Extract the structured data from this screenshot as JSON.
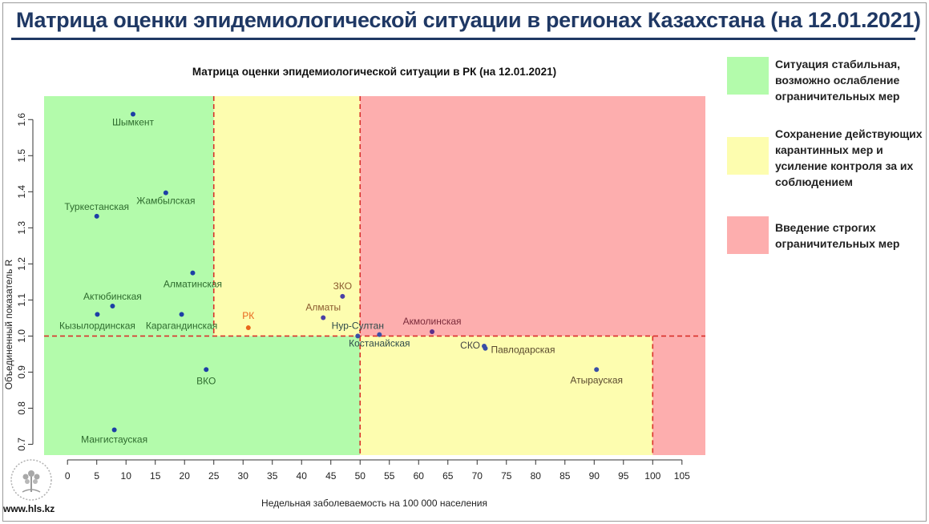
{
  "slide": {
    "title": "Матрица оценки эпидемиологической ситуации в регионах Казахстана (на 12.01.2021)",
    "url": "www.hls.kz"
  },
  "legend": [
    {
      "label": "Ситуация стабильная, возможно ослабление ограничительных мер",
      "color": "#b3fbab"
    },
    {
      "label": "Сохранение действующих карантинных мер и усиление контроля за их соблюдением",
      "color": "#fdfdaf"
    },
    {
      "label": "Введение строгих ограничительных мер",
      "color": "#fdaeae"
    }
  ],
  "chart_data": {
    "type": "scatter",
    "title": "Матрица оценки эпидемиологической ситуации в РК (на 12.01.2021)",
    "xlabel": "Недельная заболеваемость на 100 000 населения",
    "ylabel": "Объединенный показатель R",
    "xlim": [
      -4,
      109
    ],
    "ylim": [
      0.67,
      1.665
    ],
    "xticks": [
      0,
      5,
      10,
      15,
      20,
      25,
      30,
      35,
      40,
      45,
      50,
      55,
      60,
      65,
      70,
      75,
      80,
      85,
      90,
      95,
      100,
      105
    ],
    "yticks": [
      0.7,
      0.8,
      0.9,
      1.0,
      1.1,
      1.2,
      1.3,
      1.4,
      1.5,
      1.6
    ],
    "thresholds": {
      "x": [
        25,
        50,
        100
      ],
      "y": 1.0
    },
    "zone_colors": {
      "green": "#b3fbab",
      "yellow": "#fdfdaf",
      "red": "#fdaeae",
      "dashed_line": "#d9302a"
    },
    "points": [
      {
        "name": "Шымкент",
        "x": 11.2,
        "y": 1.615,
        "color": "#1d3fa6",
        "label_color": "#2e6b2e"
      },
      {
        "name": "Жамбылская",
        "x": 16.8,
        "y": 1.397,
        "color": "#1d3fa6",
        "label_color": "#2e6b2e"
      },
      {
        "name": "Туркестанская",
        "x": 5.0,
        "y": 1.332,
        "color": "#1d3fa6",
        "label_color": "#2e6b2e"
      },
      {
        "name": "Алматинская",
        "x": 21.4,
        "y": 1.175,
        "color": "#1d3fa6",
        "label_color": "#2e6b2e"
      },
      {
        "name": "Актюбинская",
        "x": 7.7,
        "y": 1.083,
        "color": "#1d3fa6",
        "label_color": "#2e6b2e"
      },
      {
        "name": "Кызылординская",
        "x": 5.1,
        "y": 1.06,
        "color": "#1d3fa6",
        "label_color": "#2e6b2e"
      },
      {
        "name": "Карагандинская",
        "x": 19.5,
        "y": 1.06,
        "color": "#1d3fa6",
        "label_color": "#2e6b2e"
      },
      {
        "name": "ВКО",
        "x": 23.7,
        "y": 0.907,
        "color": "#1d3fa6",
        "label_color": "#2e6b2e"
      },
      {
        "name": "Мангистауская",
        "x": 8.0,
        "y": 0.74,
        "color": "#1d3fa6",
        "label_color": "#2e6b2e"
      },
      {
        "name": "РК",
        "x": 30.9,
        "y": 1.023,
        "color": "#e8661c",
        "label_color": "#e8661c"
      },
      {
        "name": "ЗКО",
        "x": 47.0,
        "y": 1.11,
        "color": "#4a3fa6",
        "label_color": "#8a5a2e"
      },
      {
        "name": "Алматы",
        "x": 43.7,
        "y": 1.051,
        "color": "#4a3fa6",
        "label_color": "#8a5a2e"
      },
      {
        "name": "Нур-Султан",
        "x": 49.6,
        "y": 1.0,
        "color": "#3a4fa6",
        "label_color": "#2e4a4a"
      },
      {
        "name": "Костанайская",
        "x": 53.3,
        "y": 1.004,
        "color": "#3a4fa6",
        "label_color": "#2e4a4a"
      },
      {
        "name": "Акмолинская",
        "x": 62.3,
        "y": 1.012,
        "color": "#5a2f8a",
        "label_color": "#7a2a3a"
      },
      {
        "name": "СКО",
        "x": 71.2,
        "y": 0.972,
        "color": "#3a4fa6",
        "label_color": "#444444"
      },
      {
        "name": "Павлодарская",
        "x": 71.4,
        "y": 0.966,
        "color": "#3a4fa6",
        "label_color": "#5a4a2e"
      },
      {
        "name": "Атырауская",
        "x": 90.4,
        "y": 0.907,
        "color": "#3a4fa6",
        "label_color": "#5a4a2e"
      }
    ]
  }
}
